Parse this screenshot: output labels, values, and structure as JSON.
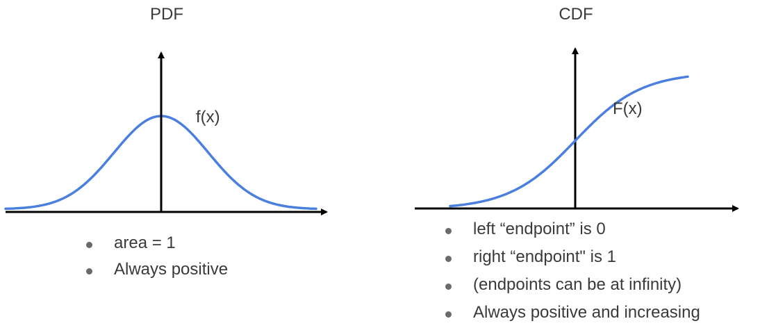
{
  "pdf": {
    "title": "PDF",
    "curve_label": "f(x)",
    "curve_color": "#4a7fe0",
    "bullets": [
      "area = 1",
      "Always positive"
    ]
  },
  "cdf": {
    "title": "CDF",
    "curve_label": "F(x)",
    "curve_color": "#4a7fe0",
    "bullets": [
      "left “endpoint” is 0",
      "right “endpoint\" is 1",
      "(endpoints can be at infinity)",
      "Always positive and increasing"
    ]
  },
  "axis_color": "#000000"
}
